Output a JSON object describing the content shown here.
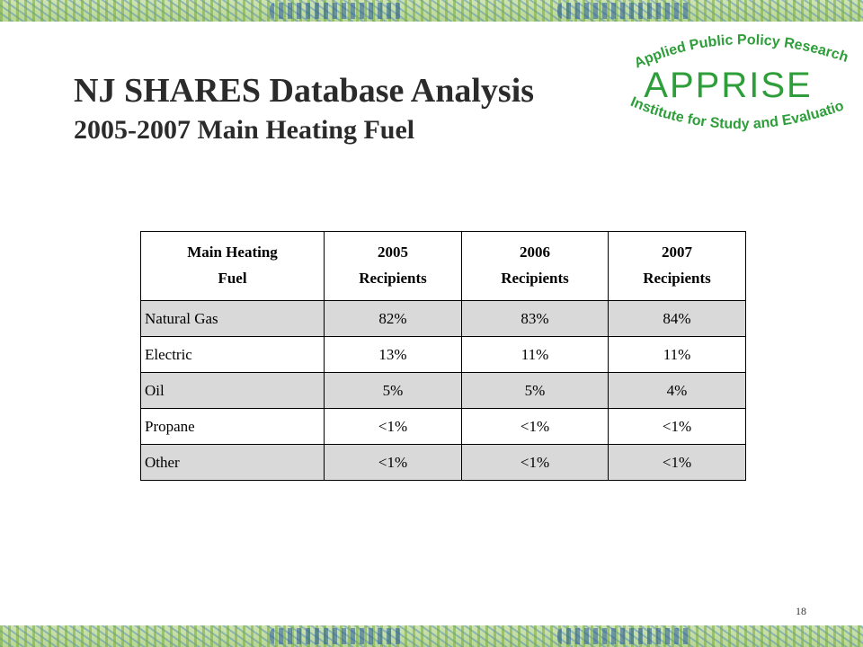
{
  "title": {
    "line1": "NJ SHARES Database Analysis",
    "line2": "2005-2007 Main Heating Fuel"
  },
  "logo": {
    "top_text": "Applied Public Policy Research",
    "main_text": "APPRISE",
    "bottom_text": "Institute for Study and Evaluation",
    "color": "#2e9e3a"
  },
  "table": {
    "headers": [
      [
        "Main Heating",
        "Fuel"
      ],
      [
        "2005",
        "Recipients"
      ],
      [
        "2006",
        "Recipients"
      ],
      [
        "2007",
        "Recipients"
      ]
    ],
    "rows": [
      [
        "Natural Gas",
        "82%",
        "83%",
        "84%"
      ],
      [
        "Electric",
        "13%",
        "11%",
        "11%"
      ],
      [
        "Oil",
        "5%",
        "5%",
        "4%"
      ],
      [
        "Propane",
        "<1%",
        "<1%",
        "<1%"
      ],
      [
        "Other",
        "<1%",
        "<1%",
        "<1%"
      ]
    ]
  },
  "slide_number": "18"
}
